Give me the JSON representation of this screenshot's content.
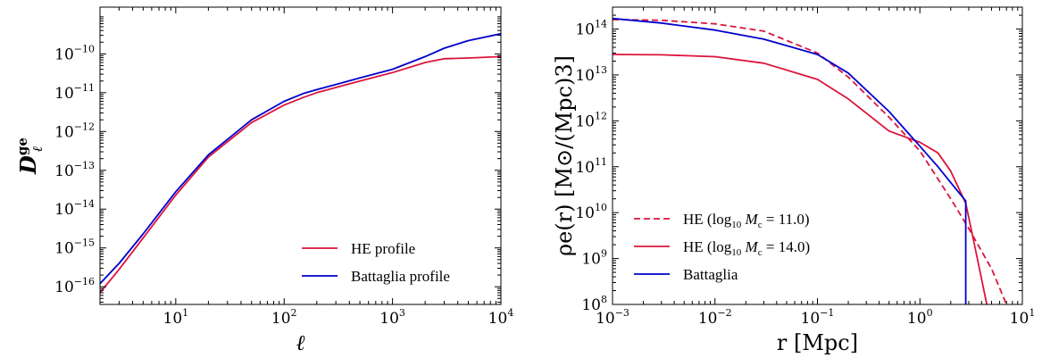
{
  "chart_data": [
    {
      "type": "line",
      "xscale": "log",
      "yscale": "log",
      "xlim": [
        2,
        10000
      ],
      "ylim": [
        3.5e-17,
        1.6e-09
      ],
      "xlabel": "ℓ",
      "ylabel": "D",
      "ylabel_sub": "ℓ",
      "ylabel_sup": "ge",
      "xticks": [
        {
          "base": "10",
          "exp": "1",
          "value": 10
        },
        {
          "base": "10",
          "exp": "2",
          "value": 100
        },
        {
          "base": "10",
          "exp": "3",
          "value": 1000
        },
        {
          "base": "10",
          "exp": "4",
          "value": 10000
        }
      ],
      "yticks": [
        {
          "base": "10",
          "exp": "−16",
          "value": 1e-16
        },
        {
          "base": "10",
          "exp": "−15",
          "value": 1e-15
        },
        {
          "base": "10",
          "exp": "−14",
          "value": 1e-14
        },
        {
          "base": "10",
          "exp": "−13",
          "value": 1e-13
        },
        {
          "base": "10",
          "exp": "−12",
          "value": 1e-12
        },
        {
          "base": "10",
          "exp": "−11",
          "value": 1e-11
        },
        {
          "base": "10",
          "exp": "−10",
          "value": 1e-10
        }
      ],
      "legend_position": "lower-right",
      "series": [
        {
          "name": "HE profile",
          "color": "#dc143c",
          "dash": "solid",
          "x": [
            2,
            3,
            5,
            10,
            20,
            50,
            100,
            150,
            200,
            500,
            1000,
            2000,
            3000,
            5000,
            10000
          ],
          "y": [
            7e-17,
            2.8e-16,
            1.8e-15,
            2.3e-14,
            2.2e-13,
            1.7e-12,
            4.8e-12,
            7.5e-12,
            1e-11,
            2e-11,
            3.3e-11,
            6e-11,
            7.5e-11,
            7.8e-11,
            8.5e-11
          ]
        },
        {
          "name": "Battaglia profile",
          "color": "#0000cd",
          "dash": "solid",
          "x": [
            2,
            3,
            5,
            10,
            20,
            50,
            100,
            150,
            200,
            500,
            1000,
            2000,
            3000,
            5000,
            10000
          ],
          "y": [
            1.2e-16,
            4e-16,
            2.3e-15,
            2.8e-14,
            2.5e-13,
            2e-12,
            6e-12,
            9.5e-12,
            1.2e-11,
            2.4e-11,
            4e-11,
            8.5e-11,
            1.4e-10,
            2.2e-10,
            3.3e-10
          ]
        }
      ]
    },
    {
      "type": "line",
      "xscale": "log",
      "yscale": "log",
      "xlim": [
        0.001,
        10
      ],
      "ylim": [
        100000000.0,
        300000000000000.0
      ],
      "xlabel": "r [Mpc]",
      "ylabel": "ρe(r) [M⊙/(Mpc)3]",
      "xticks": [
        {
          "base": "10",
          "exp": "−3",
          "value": 0.001
        },
        {
          "base": "10",
          "exp": "−2",
          "value": 0.01
        },
        {
          "base": "10",
          "exp": "−1",
          "value": 0.1
        },
        {
          "base": "10",
          "exp": "0",
          "value": 1
        },
        {
          "base": "10",
          "exp": "1",
          "value": 10
        }
      ],
      "yticks": [
        {
          "base": "10",
          "exp": "8",
          "value": 100000000.0
        },
        {
          "base": "10",
          "exp": "9",
          "value": 1000000000.0
        },
        {
          "base": "10",
          "exp": "10",
          "value": 10000000000.0
        },
        {
          "base": "10",
          "exp": "11",
          "value": 100000000000.0
        },
        {
          "base": "10",
          "exp": "12",
          "value": 1000000000000.0
        },
        {
          "base": "10",
          "exp": "13",
          "value": 10000000000000.0
        },
        {
          "base": "10",
          "exp": "14",
          "value": 100000000000000.0
        }
      ],
      "legend_position": "lower-left",
      "series": [
        {
          "name": "HE (log10 Mc = 11.0)",
          "name_prefix": "HE (log",
          "name_sub": "10",
          "name_var": " M",
          "name_var_sub": "c",
          "name_suffix": " = 11.0)",
          "color": "#dc143c",
          "dash": "dashed",
          "x": [
            0.001,
            0.003,
            0.01,
            0.03,
            0.1,
            0.2,
            0.5,
            1,
            2,
            3,
            5,
            7
          ],
          "y": [
            160000000000000.0,
            155000000000000.0,
            130000000000000.0,
            90000000000000.0,
            30000000000000.0,
            9000000000000.0,
            1200000000000.0,
            220000000000.0,
            20000000000.0,
            4500000000.0,
            600000000.0,
            100000000.0
          ]
        },
        {
          "name": "HE (log10 Mc = 14.0)",
          "name_prefix": "HE (log",
          "name_sub": "10",
          "name_var": " M",
          "name_var_sub": "c",
          "name_suffix": " = 14.0)",
          "color": "#dc143c",
          "dash": "solid",
          "x": [
            0.001,
            0.003,
            0.01,
            0.03,
            0.1,
            0.2,
            0.5,
            1,
            1.5,
            2,
            2.8,
            3.5,
            4.5
          ],
          "y": [
            28000000000000.0,
            27500000000000.0,
            25000000000000.0,
            18000000000000.0,
            8000000000000.0,
            3000000000000.0,
            600000000000.0,
            340000000000.0,
            200000000000.0,
            80000000000.0,
            16000000000.0,
            1500000000.0,
            100000000.0
          ]
        },
        {
          "name": "Battaglia",
          "color": "#0000cd",
          "dash": "solid",
          "x": [
            0.001,
            0.003,
            0.01,
            0.03,
            0.1,
            0.2,
            0.5,
            1,
            1.5,
            2,
            2.8,
            2.8
          ],
          "y": [
            170000000000000.0,
            135000000000000.0,
            95000000000000.0,
            60000000000000.0,
            28000000000000.0,
            11000000000000.0,
            1600000000000.0,
            280000000000.0,
            100000000000.0,
            45000000000.0,
            18000000000.0,
            100000000.0
          ]
        }
      ]
    }
  ]
}
